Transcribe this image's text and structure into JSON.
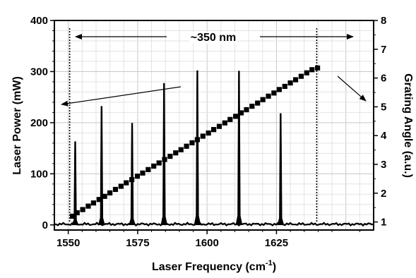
{
  "chart_data": {
    "type": "line",
    "title": "",
    "xlabel_main": "Laser Frequency (cm",
    "xlabel_sup": "-1",
    "xlabel_close": ")",
    "ylabel_left": "Laser Power (mW)",
    "ylabel_right": "Grating Angle (a.u.)",
    "xlim": [
      1545,
      1660
    ],
    "ylim_left": [
      -10,
      400
    ],
    "ylim_right": [
      0.72,
      8
    ],
    "grid": true,
    "x_ticks": [
      1550,
      1575,
      1600,
      1625
    ],
    "x_tick_labels": [
      "1550",
      "1575",
      "1600",
      "1625"
    ],
    "y_left_ticks": [
      0,
      100,
      200,
      300,
      400
    ],
    "y_left_tick_labels": [
      "0",
      "100",
      "200",
      "300",
      "400"
    ],
    "y_right_ticks": [
      1,
      2,
      3,
      4,
      5,
      6,
      7,
      8
    ],
    "y_right_tick_labels": [
      "1",
      "2",
      "3",
      "4",
      "5",
      "6",
      "7",
      "8"
    ],
    "annotation": "~350 nm",
    "range_markers": [
      1550.5,
      1639.5
    ],
    "power_peaks": [
      {
        "x": 1552.5,
        "y": 163
      },
      {
        "x": 1562,
        "y": 232
      },
      {
        "x": 1573,
        "y": 199
      },
      {
        "x": 1584.5,
        "y": 277
      },
      {
        "x": 1596.5,
        "y": 302
      },
      {
        "x": 1611.5,
        "y": 301
      },
      {
        "x": 1626.5,
        "y": 218
      }
    ],
    "angle_series": {
      "x": [
        1551.5,
        1553.2,
        1555.2,
        1557.2,
        1559.1,
        1561.1,
        1563.1,
        1565,
        1567,
        1569,
        1570.9,
        1572.9,
        1574.9,
        1576.8,
        1578.8,
        1580.8,
        1582.7,
        1584.7,
        1586.7,
        1588.7,
        1590.6,
        1592.6,
        1594.6,
        1596.5,
        1598.5,
        1600.5,
        1602.4,
        1604.4,
        1606.4,
        1608.3,
        1610.3,
        1612.3,
        1614.2,
        1616.2,
        1618.2,
        1620.1,
        1622.1,
        1624.1,
        1626,
        1628,
        1630,
        1631.9,
        1633.9,
        1635.9,
        1637.8,
        1639.8
      ],
      "y": [
        1.2,
        1.32,
        1.43,
        1.55,
        1.66,
        1.78,
        1.89,
        2.01,
        2.13,
        2.24,
        2.36,
        2.47,
        2.59,
        2.7,
        2.82,
        2.94,
        3.05,
        3.17,
        3.28,
        3.4,
        3.51,
        3.63,
        3.75,
        3.86,
        3.98,
        4.09,
        4.21,
        4.32,
        4.44,
        4.56,
        4.67,
        4.79,
        4.9,
        5.02,
        5.13,
        5.25,
        5.37,
        5.48,
        5.6,
        5.71,
        5.83,
        5.94,
        6.06,
        6.18,
        6.29,
        6.35
      ]
    }
  }
}
